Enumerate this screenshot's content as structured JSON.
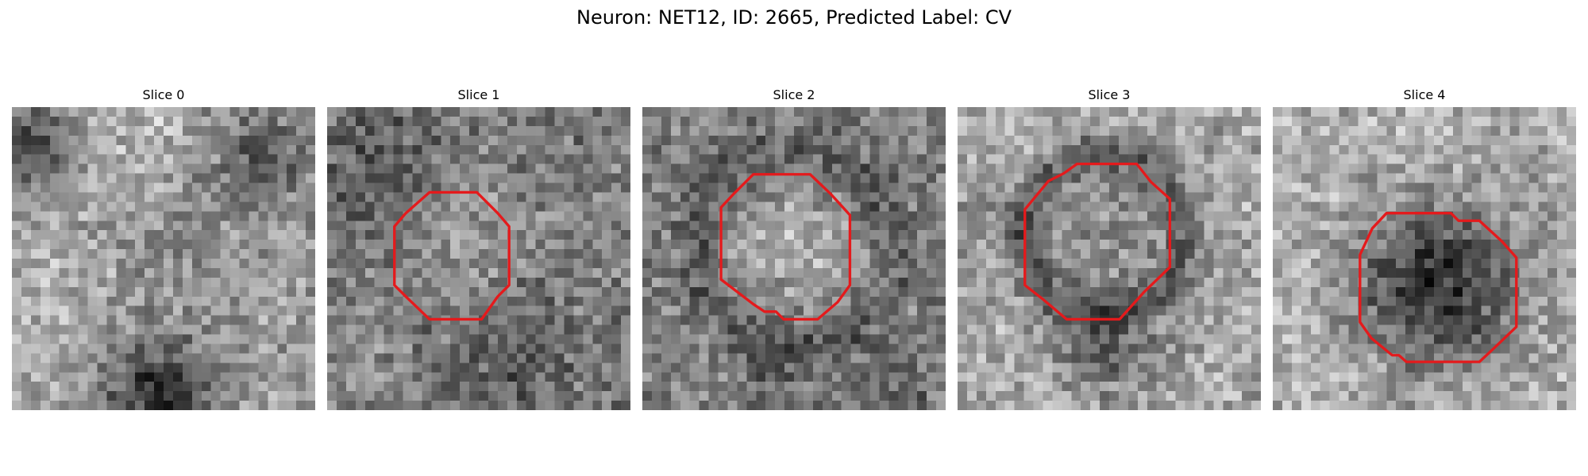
{
  "figure": {
    "title": "Neuron: NET12, ID: 2665, Predicted Label: CV"
  },
  "panels": [
    {
      "title": "Slice 0",
      "overlay": false,
      "pattern": "dark-corners-bright-center",
      "outline_color": "#e41a1c"
    },
    {
      "title": "Slice 1",
      "overlay": true,
      "pattern": "mixed-bright-center",
      "outline_color": "#e41a1c"
    },
    {
      "title": "Slice 2",
      "overlay": true,
      "pattern": "bright-center-dark-ring",
      "outline_color": "#e41a1c"
    },
    {
      "title": "Slice 3",
      "overlay": true,
      "pattern": "bright-bg-dark-ring",
      "outline_color": "#e41a1c"
    },
    {
      "title": "Slice 4",
      "overlay": true,
      "pattern": "bright-bg-dark-center",
      "outline_color": "#e41a1c"
    }
  ]
}
